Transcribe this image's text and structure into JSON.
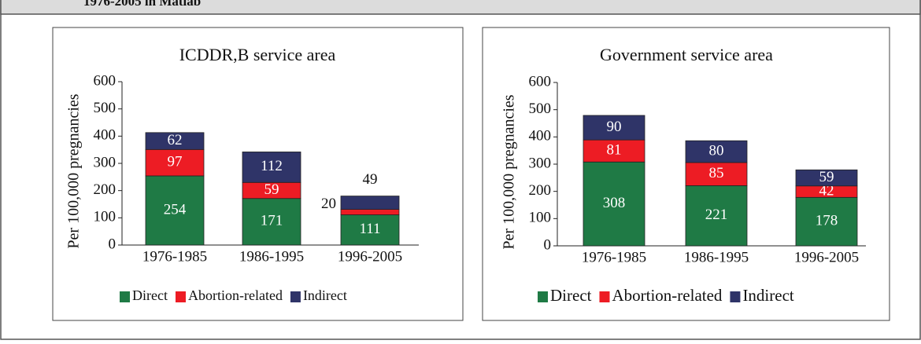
{
  "header": {
    "title": "1976-2005 in Matlab"
  },
  "chart_data": [
    {
      "type": "bar",
      "stacked": true,
      "title": "ICDDR,B service area",
      "y_label": "Per 100,000 pregnancies",
      "categories": [
        "1976-1985",
        "1986-1995",
        "1996-2005"
      ],
      "series": [
        {
          "name": "Direct",
          "color": "#1f7a45",
          "values": [
            254,
            171,
            111
          ]
        },
        {
          "name": "Abortion-related",
          "color": "#ed1c24",
          "values": [
            97,
            59,
            20
          ]
        },
        {
          "name": "Indirect",
          "color": "#2f3468",
          "values": [
            62,
            112,
            49
          ]
        }
      ],
      "ylim": [
        0,
        600
      ],
      "yticks": [
        0,
        100,
        200,
        300,
        400,
        500,
        600
      ],
      "grid": false,
      "legend": "bottom"
    },
    {
      "type": "bar",
      "stacked": true,
      "title": "Government service area",
      "y_label": "Per 100,000 pregnancies",
      "categories": [
        "1976-1985",
        "1986-1995",
        "1996-2005"
      ],
      "series": [
        {
          "name": "Direct",
          "color": "#1f7a45",
          "values": [
            308,
            221,
            178
          ]
        },
        {
          "name": "Abortion-related",
          "color": "#ed1c24",
          "values": [
            81,
            85,
            42
          ]
        },
        {
          "name": "Indirect",
          "color": "#2f3468",
          "values": [
            90,
            80,
            59
          ]
        }
      ],
      "ylim": [
        0,
        600
      ],
      "yticks": [
        0,
        100,
        200,
        300,
        400,
        500,
        600
      ],
      "grid": false,
      "legend": "bottom"
    }
  ]
}
